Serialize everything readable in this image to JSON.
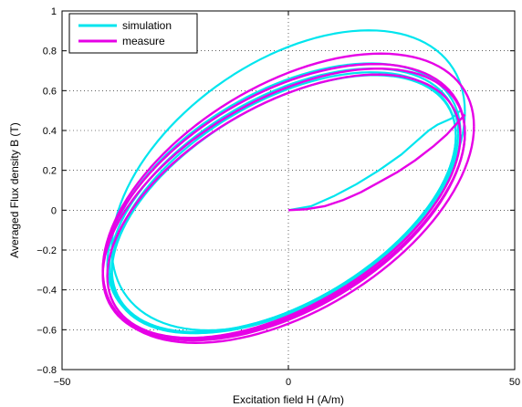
{
  "chart_data": {
    "type": "line",
    "title": "",
    "xlabel": "Excitation field H (A/m)",
    "ylabel": "Averaged Flux density B (T)",
    "xlim": [
      -50,
      50
    ],
    "ylim": [
      -0.8,
      1
    ],
    "xticks": [
      -50,
      0,
      50
    ],
    "yticks": [
      -0.8,
      -0.6,
      -0.4,
      -0.2,
      0,
      0.2,
      0.4,
      0.6,
      0.8,
      1
    ],
    "xtick_labels": [
      "−50",
      "0",
      "50"
    ],
    "ytick_labels": [
      "−0.8",
      "−0.6",
      "−0.4",
      "−0.2",
      "0",
      "0.2",
      "0.4",
      "0.6",
      "0.8",
      "1"
    ],
    "grid": true,
    "legend_position": "top-left",
    "series": [
      {
        "name": "simulation",
        "color": "#00e5ee",
        "loops": [
          {
            "center": [
              0,
              0.15
            ],
            "rx": 39,
            "ry": 0.67,
            "tilt": 0.0088
          },
          {
            "center": [
              -1,
              0.06
            ],
            "rx": 39,
            "ry": 0.59,
            "tilt": 0.0085
          },
          {
            "center": [
              -1,
              0.05
            ],
            "rx": 38.5,
            "ry": 0.57,
            "tilt": 0.0087
          },
          {
            "center": [
              -1,
              0.04
            ],
            "rx": 38,
            "ry": 0.56,
            "tilt": 0.0088
          },
          {
            "center": [
              -1,
              0.03
            ],
            "rx": 38,
            "ry": 0.55,
            "tilt": 0.009
          }
        ],
        "initial": [
          [
            0,
            0
          ],
          [
            5,
            0.02
          ],
          [
            10,
            0.07
          ],
          [
            15,
            0.13
          ],
          [
            20,
            0.2
          ],
          [
            25,
            0.28
          ],
          [
            28,
            0.34
          ],
          [
            31,
            0.4
          ],
          [
            33,
            0.43
          ],
          [
            36,
            0.46
          ],
          [
            38,
            0.5
          ]
        ]
      },
      {
        "name": "measure",
        "color": "#e600e6",
        "loops": [
          {
            "center": [
              0,
              0.06
            ],
            "rx": 41,
            "ry": 0.63,
            "tilt": 0.0088
          },
          {
            "center": [
              -1,
              0.04
            ],
            "rx": 40,
            "ry": 0.6,
            "tilt": 0.0087
          },
          {
            "center": [
              -1,
              0.03
            ],
            "rx": 40,
            "ry": 0.58,
            "tilt": 0.0089
          },
          {
            "center": [
              -1,
              0.02
            ],
            "rx": 39,
            "ry": 0.56,
            "tilt": 0.009
          }
        ],
        "initial": [
          [
            0,
            0
          ],
          [
            4,
            0.005
          ],
          [
            8,
            0.02
          ],
          [
            12,
            0.05
          ],
          [
            16,
            0.09
          ],
          [
            20,
            0.14
          ],
          [
            24,
            0.19
          ],
          [
            28,
            0.25
          ],
          [
            32,
            0.32
          ],
          [
            35,
            0.38
          ],
          [
            37,
            0.43
          ],
          [
            39,
            0.48
          ]
        ]
      }
    ]
  }
}
